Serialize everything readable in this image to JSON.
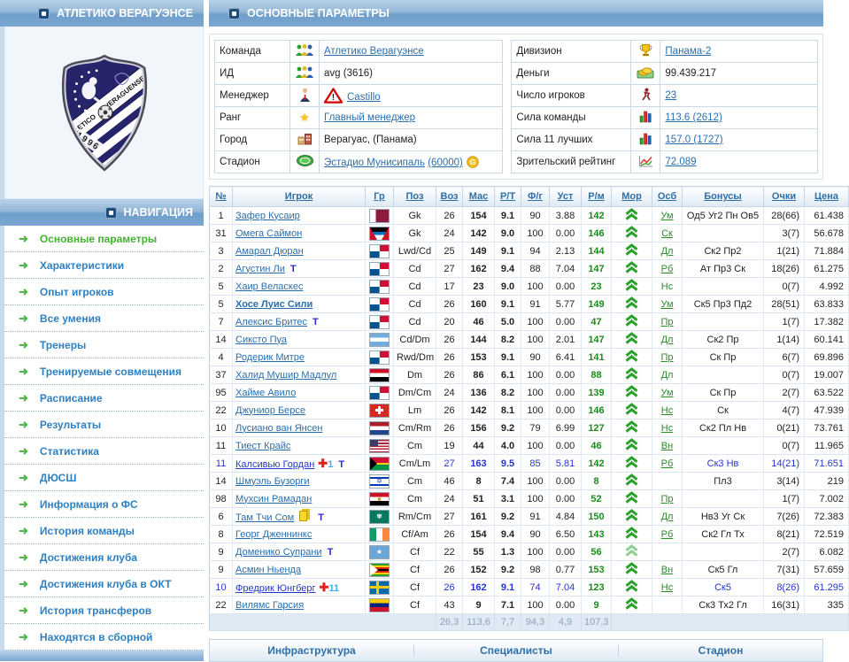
{
  "icons": {
    "t_label": "T"
  },
  "colors": {
    "header_blue": "#7ba7d1",
    "link_blue": "#2a6fad",
    "value_green": "#1d8a1d",
    "injured_blue": "#2436cf",
    "active_nav_green": "#41b32d"
  },
  "sidebar": {
    "team_header": "АТЛЕТИКО ВЕРАГУЭНСЕ",
    "nav_header": "НАВИГАЦИЯ",
    "logo": {
      "club_line1": "ATLETICO",
      "club_line2": "VERAGUENSE",
      "year": "1996"
    },
    "nav_items": [
      {
        "label": "Основные параметры",
        "active": true
      },
      {
        "label": "Характеристики",
        "active": false
      },
      {
        "label": "Опыт игроков",
        "active": false
      },
      {
        "label": "Все умения",
        "active": false
      },
      {
        "label": "Тренеры",
        "active": false
      },
      {
        "label": "Тренируемые совмещения",
        "active": false
      },
      {
        "label": "Расписание",
        "active": false
      },
      {
        "label": "Результаты",
        "active": false
      },
      {
        "label": "Статистика",
        "active": false
      },
      {
        "label": "ДЮСШ",
        "active": false
      },
      {
        "label": "Информация о ФС",
        "active": false
      },
      {
        "label": "История команды",
        "active": false
      },
      {
        "label": "Достижения клуба",
        "active": false
      },
      {
        "label": "Достижения клуба в ОКТ",
        "active": false
      },
      {
        "label": "История трансферов",
        "active": false
      },
      {
        "label": "Находятся в сборной",
        "active": false
      }
    ]
  },
  "main": {
    "header": "ОСНОВНЫЕ ПАРАМЕТРЫ",
    "info_left": [
      {
        "label": "Команда",
        "icon": "team-icon",
        "value": "Атлетико Верагуэнсе",
        "link": true
      },
      {
        "label": "ИД",
        "icon": "team-icon",
        "value": "avg (3616)",
        "link": false
      },
      {
        "label": "Менеджер",
        "icon": "manager-icon",
        "value": "Castillo",
        "link": true,
        "warning": true
      },
      {
        "label": "Ранг",
        "icon": "rank-star-icon",
        "value": "Главный менеджер",
        "link": true
      },
      {
        "label": "Город",
        "icon": "city-icon",
        "value": "Верагуас, (Панама)",
        "link": false
      },
      {
        "label": "Стадион",
        "icon": "stadium-icon",
        "value": "Эстадио Мунисипаль",
        "link": true,
        "extra": "(60000)",
        "coin": true
      }
    ],
    "info_right": [
      {
        "label": "Дивизион",
        "icon": "trophy-icon",
        "value": "Панама-2",
        "link": true
      },
      {
        "label": "Деньги",
        "icon": "money-icon",
        "value": "99.439.217",
        "link": false
      },
      {
        "label": "Число игроков",
        "icon": "players-count-icon",
        "value": "23",
        "link": true
      },
      {
        "label": "Сила команды",
        "icon": "strength-bars-icon",
        "value": "113.6 (2612)",
        "link": true
      },
      {
        "label": "Сила 11 лучших",
        "icon": "strength-bars-icon",
        "value": "157.0 (1727)",
        "link": true
      },
      {
        "label": "Зрительский рейтинг",
        "icon": "rating-graph-icon",
        "value": "72.089",
        "link": true
      }
    ],
    "table": {
      "columns": [
        "№",
        "Игрок",
        "Гр",
        "Поз",
        "Воз",
        "Мас",
        "Р/Т",
        "Ф/г",
        "Уст",
        "Р/м",
        "Мор",
        "Осб",
        "Бонусы",
        "Очки",
        "Цена"
      ],
      "rows": [
        {
          "num": "1",
          "name": "Зафер Кусаир",
          "flag": "qatar",
          "pos": "Gk",
          "voz": "26",
          "mas": "154",
          "rt": "9.1",
          "fg": "90",
          "ust": "3.88",
          "rm": "142",
          "osb": "Ум",
          "osb_link": true,
          "bonus": "Од5 Уг2 Пн Ов5",
          "pts": "28(66)",
          "price": "61.438"
        },
        {
          "num": "31",
          "name": "Омега Саймон",
          "flag": "antigua",
          "pos": "Gk",
          "voz": "24",
          "mas": "142",
          "rt": "9.0",
          "fg": "100",
          "ust": "0.00",
          "rm": "146",
          "osb": "Ск",
          "osb_link": true,
          "bonus": "",
          "pts": "3(7)",
          "price": "56.678"
        },
        {
          "num": "3",
          "name": "Амарал Дюран",
          "flag": "panama",
          "pos": "Lwd/Cd",
          "voz": "25",
          "mas": "149",
          "rt": "9.1",
          "fg": "94",
          "ust": "2.13",
          "rm": "144",
          "osb": "Дл",
          "osb_link": true,
          "bonus": "Ск2 Пр2",
          "pts": "1(21)",
          "price": "71.884"
        },
        {
          "num": "2",
          "name": "Агустин Ли",
          "badges": {
            "t": true
          },
          "flag": "panama",
          "pos": "Cd",
          "voz": "27",
          "mas": "162",
          "rt": "9.4",
          "fg": "88",
          "ust": "7.04",
          "rm": "147",
          "osb": "Рб",
          "osb_link": true,
          "bonus": "Ат Пр3 Ск",
          "pts": "18(26)",
          "price": "61.275"
        },
        {
          "num": "5",
          "name": "Хаир Веласкес",
          "flag": "panama",
          "pos": "Cd",
          "voz": "17",
          "mas": "23",
          "rt": "9.0",
          "fg": "100",
          "ust": "0.00",
          "rm": "23",
          "osb": "Нс",
          "osb_link": false,
          "bonus": "",
          "pts": "0(7)",
          "price": "4.992"
        },
        {
          "num": "5",
          "name": "Хосе Луис Сили",
          "bold": true,
          "flag": "panama",
          "pos": "Cd",
          "voz": "26",
          "mas": "160",
          "rt": "9.1",
          "fg": "91",
          "ust": "5.77",
          "rm": "149",
          "osb": "Ум",
          "osb_link": true,
          "bonus": "Ск5 Пр3 Пд2",
          "pts": "28(51)",
          "price": "63.833"
        },
        {
          "num": "7",
          "name": "Алексис Бритес",
          "badges": {
            "t": true
          },
          "flag": "panama",
          "pos": "Cd",
          "voz": "20",
          "mas": "46",
          "rt": "5.0",
          "fg": "100",
          "ust": "0.00",
          "rm": "47",
          "osb": "Пр",
          "osb_link": true,
          "bonus": "",
          "pts": "1(7)",
          "price": "17.382"
        },
        {
          "num": "14",
          "name": "Сиксто Пуа",
          "flag": "argentina",
          "pos": "Cd/Dm",
          "voz": "26",
          "mas": "144",
          "rt": "8.2",
          "fg": "100",
          "ust": "2.01",
          "rm": "147",
          "osb": "Дл",
          "osb_link": true,
          "bonus": "Ск2 Пр",
          "pts": "1(14)",
          "price": "60.141"
        },
        {
          "num": "4",
          "name": "Родерик Митре",
          "flag": "panama",
          "pos": "Rwd/Dm",
          "voz": "26",
          "mas": "153",
          "rt": "9.1",
          "fg": "90",
          "ust": "6.41",
          "rm": "141",
          "osb": "Пр",
          "osb_link": true,
          "bonus": "Ск Пр",
          "pts": "6(7)",
          "price": "69.896"
        },
        {
          "num": "37",
          "name": "Халид Мушир Мадлул",
          "flag": "iraq",
          "pos": "Dm",
          "voz": "26",
          "mas": "86",
          "rt": "6.1",
          "fg": "100",
          "ust": "0.00",
          "rm": "88",
          "osb": "Дл",
          "osb_link": false,
          "bonus": "",
          "pts": "0(7)",
          "price": "19.007"
        },
        {
          "num": "95",
          "name": "Хайме Авило",
          "flag": "panama",
          "pos": "Dm/Cm",
          "voz": "24",
          "mas": "136",
          "rt": "8.2",
          "fg": "100",
          "ust": "0.00",
          "rm": "139",
          "osb": "Ум",
          "osb_link": true,
          "bonus": "Ск Пр",
          "pts": "2(7)",
          "price": "63.522"
        },
        {
          "num": "22",
          "name": "Джуниор Берсе",
          "flag": "switzerland",
          "pos": "Lm",
          "voz": "26",
          "mas": "142",
          "rt": "8.1",
          "fg": "100",
          "ust": "0.00",
          "rm": "146",
          "osb": "Нс",
          "osb_link": true,
          "bonus": "Ск",
          "pts": "4(7)",
          "price": "47.939"
        },
        {
          "num": "10",
          "name": "Лусиано ван Янсен",
          "flag": "netherlands",
          "pos": "Cm/Rm",
          "voz": "26",
          "mas": "156",
          "rt": "9.2",
          "fg": "79",
          "ust": "6.99",
          "rm": "127",
          "osb": "Нс",
          "osb_link": true,
          "bonus": "Ск2 Пл Нв",
          "pts": "0(21)",
          "price": "73.761"
        },
        {
          "num": "11",
          "name": "Тиест Крайс",
          "flag": "usa",
          "pos": "Cm",
          "voz": "19",
          "mas": "44",
          "rt": "4.0",
          "fg": "100",
          "ust": "0.00",
          "rm": "46",
          "osb": "Вн",
          "osb_link": true,
          "bonus": "",
          "pts": "0(7)",
          "price": "11.965"
        },
        {
          "num": "11",
          "name": "Калсивью Гордан",
          "badges": {
            "cross": "1",
            "t": true
          },
          "injured": true,
          "pos_alt": true,
          "flag": "vanuatu",
          "pos": "Cm/Lm",
          "voz": "27",
          "mas": "163",
          "rt": "9.5",
          "fg": "85",
          "ust": "5.81",
          "rm": "142",
          "osb": "Рб",
          "osb_link": true,
          "bonus": "Ск3 Нв",
          "pts": "14(21)",
          "price": "71.651"
        },
        {
          "num": "14",
          "name": "Шмуэль Бузорги",
          "flag": "israel",
          "pos": "Cm",
          "voz": "46",
          "mas": "8",
          "rt": "7.4",
          "fg": "100",
          "ust": "0.00",
          "rm": "8",
          "osb": "",
          "osb_link": false,
          "bonus": "Пл3",
          "pts": "3(14)",
          "price": "219"
        },
        {
          "num": "98",
          "name": "Мухсин Рамадан",
          "flag": "egypt",
          "pos": "Cm",
          "voz": "24",
          "mas": "51",
          "rt": "3.1",
          "fg": "100",
          "ust": "0.00",
          "rm": "52",
          "osb": "Пр",
          "osb_link": true,
          "bonus": "",
          "pts": "1(7)",
          "price": "7.002"
        },
        {
          "num": "6",
          "name": "Там Тчи Сом",
          "badges": {
            "cards": true,
            "t": true
          },
          "flag": "macau",
          "pos": "Rm/Cm",
          "voz": "27",
          "mas": "161",
          "rt": "9.2",
          "fg": "91",
          "ust": "4.84",
          "rm": "150",
          "osb": "Дл",
          "osb_link": true,
          "bonus": "Нв3 Уг Ск",
          "pts": "7(26)",
          "price": "72.383"
        },
        {
          "num": "8",
          "name": "Георг Дженнинкс",
          "flag": "ireland",
          "pos": "Cf/Am",
          "voz": "26",
          "mas": "154",
          "rt": "9.4",
          "fg": "90",
          "ust": "6.50",
          "rm": "143",
          "osb": "Рб",
          "osb_link": true,
          "bonus": "Ск2 Гл Тх",
          "pts": "8(21)",
          "price": "72.519"
        },
        {
          "num": "9",
          "name": "Доменико Супрани",
          "badges": {
            "t": true
          },
          "flag": "somalia",
          "pos": "Cf",
          "voz": "22",
          "mas": "55",
          "rt": "1.3",
          "fg": "100",
          "ust": "0.00",
          "rm": "56",
          "osb": "",
          "osb_link": false,
          "bonus": "",
          "pts": "2(7)",
          "price": "6.082",
          "mor": "outline"
        },
        {
          "num": "9",
          "name": "Асмин Ньенда",
          "flag": "zimbabwe",
          "pos": "Cf",
          "voz": "26",
          "mas": "152",
          "rt": "9.2",
          "fg": "98",
          "ust": "0.77",
          "rm": "153",
          "osb": "Вн",
          "osb_link": true,
          "bonus": "Ск5 Гл",
          "pts": "7(31)",
          "price": "57.659"
        },
        {
          "num": "10",
          "name": "Фредрик Юнгберг",
          "badges": {
            "cross": "11"
          },
          "injured": true,
          "flag": "sweden",
          "pos": "Cf",
          "voz": "26",
          "mas": "162",
          "rt": "9.1",
          "fg": "74",
          "ust": "7.04",
          "rm": "123",
          "osb": "Нс",
          "osb_link": true,
          "bonus": "Ск5",
          "pts": "8(26)",
          "price": "61.295"
        },
        {
          "num": "22",
          "name": "Вилямс Гарсия",
          "flag": "venezuela",
          "pos": "Cf",
          "voz": "43",
          "mas": "9",
          "rt": "7.1",
          "fg": "100",
          "ust": "0.00",
          "rm": "9",
          "osb": "",
          "osb_link": false,
          "bonus": "Ск3 Тх2 Гл",
          "pts": "16(31)",
          "price": "335"
        }
      ],
      "summary": {
        "voz": "26,3",
        "mas": "113,6",
        "rt": "7,7",
        "fg": "94,3",
        "ust": "4,9",
        "rm": "107,3"
      }
    },
    "bottom_tabs": [
      {
        "label": "Инфраструктура"
      },
      {
        "label": "Специалисты"
      },
      {
        "label": "Стадион"
      }
    ]
  }
}
